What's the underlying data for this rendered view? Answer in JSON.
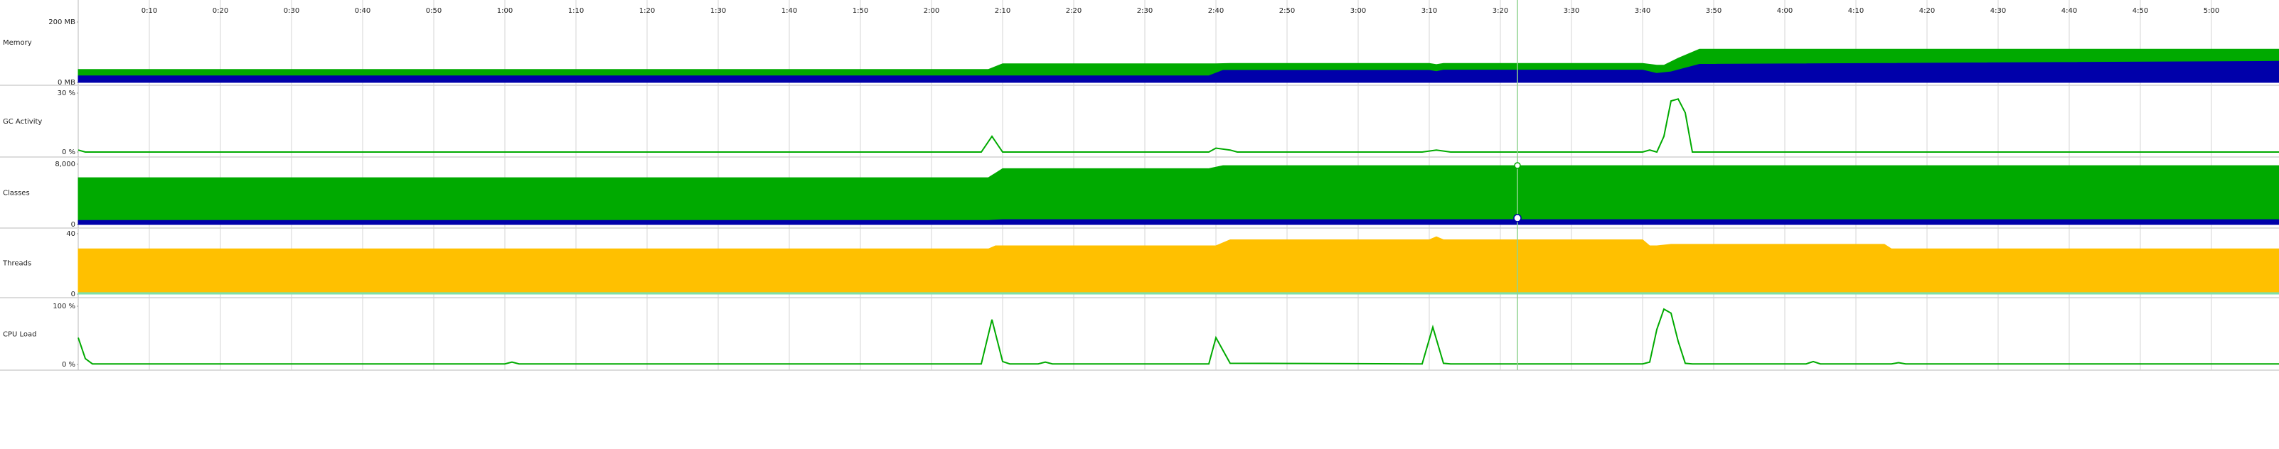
{
  "time_axis": {
    "xlim": [
      0,
      309.5
    ],
    "ticks": [
      {
        "value": 10,
        "label": "0:10"
      },
      {
        "value": 20,
        "label": "0:20"
      },
      {
        "value": 30,
        "label": "0:30"
      },
      {
        "value": 40,
        "label": "0:40"
      },
      {
        "value": 50,
        "label": "0:50"
      },
      {
        "value": 60,
        "label": "1:00"
      },
      {
        "value": 70,
        "label": "1:10"
      },
      {
        "value": 80,
        "label": "1:20"
      },
      {
        "value": 90,
        "label": "1:30"
      },
      {
        "value": 100,
        "label": "1:40"
      },
      {
        "value": 110,
        "label": "1:50"
      },
      {
        "value": 120,
        "label": "2:00"
      },
      {
        "value": 130,
        "label": "2:10"
      },
      {
        "value": 140,
        "label": "2:20"
      },
      {
        "value": 150,
        "label": "2:30"
      },
      {
        "value": 160,
        "label": "2:40"
      },
      {
        "value": 170,
        "label": "2:50"
      },
      {
        "value": 180,
        "label": "3:00"
      },
      {
        "value": 190,
        "label": "3:10"
      },
      {
        "value": 200,
        "label": "3:20"
      },
      {
        "value": 210,
        "label": "3:30"
      },
      {
        "value": 220,
        "label": "3:40"
      },
      {
        "value": 230,
        "label": "3:50"
      },
      {
        "value": 240,
        "label": "4:00"
      },
      {
        "value": 250,
        "label": "4:10"
      },
      {
        "value": 260,
        "label": "4:20"
      },
      {
        "value": 270,
        "label": "4:30"
      },
      {
        "value": 280,
        "label": "4:40"
      },
      {
        "value": 290,
        "label": "4:50"
      },
      {
        "value": 300,
        "label": "5:00"
      }
    ]
  },
  "panels": [
    {
      "label": "Memory",
      "type": "area",
      "ylim": [
        0,
        200
      ],
      "yticks": [
        {
          "value": 200,
          "label": "200 MB"
        },
        {
          "value": 0,
          "label": "0 MB"
        }
      ],
      "series": [
        {
          "color": "#00aa00",
          "x": [
            0,
            128,
            130,
            160,
            162,
            190,
            191,
            192,
            220,
            222,
            223,
            225,
            228,
            309.5
          ],
          "values": [
            43,
            43,
            62,
            62,
            63,
            63,
            59,
            63,
            63,
            57,
            57,
            80,
            110,
            110
          ]
        },
        {
          "color": "#0000aa",
          "x": [
            0,
            159,
            161,
            190,
            191,
            192,
            220,
            222,
            224,
            228,
            309.5
          ],
          "values": [
            22,
            22,
            40,
            40,
            36,
            41,
            41,
            30,
            35,
            60,
            70
          ]
        }
      ]
    },
    {
      "label": "GC Activity",
      "type": "line",
      "ylim": [
        0,
        30
      ],
      "yticks": [
        {
          "value": 30,
          "label": "30 %"
        },
        {
          "value": 0,
          "label": "0 %"
        }
      ],
      "series": [
        {
          "color": "#00aa00",
          "x": [
            0,
            1,
            2,
            127,
            128.5,
            130,
            159,
            160,
            162,
            163,
            189,
            191,
            193,
            220,
            221,
            222,
            223,
            224,
            225,
            226,
            227,
            309.5
          ],
          "values": [
            1,
            0,
            0,
            0,
            8,
            0,
            0,
            2,
            1,
            0,
            0,
            1,
            0,
            0,
            1,
            0,
            8,
            26,
            27,
            20,
            0,
            0
          ]
        }
      ]
    },
    {
      "label": "Classes",
      "type": "area",
      "ylim": [
        0,
        8000
      ],
      "yticks": [
        {
          "value": 8000,
          "label": "8,000"
        },
        0
      ],
      "series": [
        {
          "color": "#00aa00",
          "x": [
            0,
            128,
            130,
            159,
            161,
            309.5
          ],
          "values": [
            6200,
            6200,
            7400,
            7400,
            7800,
            7800
          ]
        },
        {
          "color": "#0000aa",
          "x": [
            0,
            128,
            130,
            309.5
          ],
          "values": [
            550,
            550,
            650,
            650
          ]
        }
      ]
    },
    {
      "label": "Threads",
      "type": "area",
      "ylim": [
        0,
        40
      ],
      "yticks": [
        40,
        0
      ],
      "series": [
        {
          "color": "#ffc000",
          "x": [
            0,
            128,
            129,
            160,
            162,
            190,
            191,
            192,
            220,
            221,
            222,
            224,
            254,
            255,
            309.5
          ],
          "values": [
            30,
            30,
            32,
            32,
            36,
            36,
            38,
            36,
            36,
            32,
            32,
            33,
            33,
            30,
            30
          ]
        },
        {
          "color": "#7fe0a8",
          "x": [
            0,
            309.5
          ],
          "values": [
            1,
            1
          ]
        }
      ]
    },
    {
      "label": "CPU Load",
      "type": "line",
      "ylim": [
        0,
        100
      ],
      "yticks": [
        {
          "value": 100,
          "label": "100 %"
        },
        {
          "value": 0,
          "label": "0 %"
        }
      ],
      "series": [
        {
          "color": "#00aa00",
          "x": [
            0,
            1,
            2,
            60,
            61,
            62,
            127,
            128.5,
            130,
            131,
            135,
            136,
            137,
            159,
            160,
            162,
            189,
            190.5,
            192,
            193,
            220,
            221,
            222,
            223,
            224,
            225,
            226,
            227,
            243,
            244,
            245,
            255,
            256,
            257,
            309.5
          ],
          "values": [
            46,
            10,
            1,
            1,
            4,
            1,
            1,
            77,
            5,
            1,
            1,
            4,
            1,
            1,
            46,
            2,
            1,
            64,
            2,
            1,
            1,
            4,
            60,
            95,
            88,
            40,
            2,
            1,
            1,
            5,
            1,
            1,
            3,
            1,
            1
          ]
        }
      ]
    }
  ]
}
